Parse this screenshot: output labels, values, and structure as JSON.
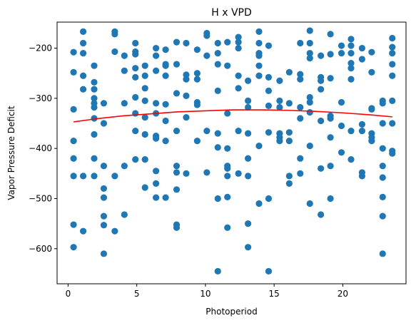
{
  "chart_data": {
    "type": "scatter",
    "title": "H x VPD",
    "xlabel": "Photoperiod",
    "ylabel": "Vapor Pressure Deficit",
    "xlim": [
      -0.8,
      24.6
    ],
    "ylim": [
      -670,
      -148
    ],
    "xticks": [
      0,
      5,
      10,
      15,
      20
    ],
    "yticks": [
      -600,
      -500,
      -400,
      -300,
      -200
    ],
    "ytick_labels": [
      "−600",
      "−500",
      "−400",
      "−300",
      "−200"
    ],
    "grid": false,
    "colors": {
      "points": "#1f77b4",
      "fit": "#ff0000"
    },
    "fit_curve": {
      "x": [
        0.4,
        2,
        4,
        6,
        8,
        10,
        12,
        14,
        16,
        18,
        20,
        22,
        23.6
      ],
      "y": [
        -347,
        -341,
        -335,
        -331,
        -327,
        -325,
        -323,
        -323,
        -324,
        -326,
        -329,
        -333,
        -337
      ]
    },
    "points": [
      [
        0.4,
        -208
      ],
      [
        0.4,
        -248
      ],
      [
        0.4,
        -322
      ],
      [
        0.4,
        -385
      ],
      [
        0.4,
        -420
      ],
      [
        0.4,
        -455
      ],
      [
        0.4,
        -552
      ],
      [
        0.4,
        -597
      ],
      [
        1.1,
        -167
      ],
      [
        1.1,
        -190
      ],
      [
        1.1,
        -210
      ],
      [
        1.1,
        -255
      ],
      [
        1.1,
        -282
      ],
      [
        1.1,
        -455
      ],
      [
        1.1,
        -565
      ],
      [
        1.9,
        -235
      ],
      [
        1.9,
        -268
      ],
      [
        1.9,
        -282
      ],
      [
        1.9,
        -300
      ],
      [
        1.9,
        -310
      ],
      [
        1.9,
        -318
      ],
      [
        1.9,
        -340
      ],
      [
        1.9,
        -372
      ],
      [
        1.9,
        -420
      ],
      [
        1.9,
        -455
      ],
      [
        2.6,
        -310
      ],
      [
        2.6,
        -350
      ],
      [
        2.6,
        -435
      ],
      [
        2.6,
        -480
      ],
      [
        2.6,
        -498
      ],
      [
        2.6,
        -535
      ],
      [
        2.6,
        -553
      ],
      [
        2.6,
        -610
      ],
      [
        3.4,
        -167
      ],
      [
        3.4,
        -172
      ],
      [
        3.4,
        -207
      ],
      [
        3.4,
        -455
      ],
      [
        3.4,
        -565
      ],
      [
        4.1,
        -215
      ],
      [
        4.1,
        -245
      ],
      [
        4.1,
        -310
      ],
      [
        4.1,
        -435
      ],
      [
        4.1,
        -532
      ],
      [
        4.9,
        -190
      ],
      [
        4.9,
        -207
      ],
      [
        4.9,
        -212
      ],
      [
        4.9,
        -240
      ],
      [
        4.9,
        -258
      ],
      [
        4.9,
        -298
      ],
      [
        4.9,
        -330
      ],
      [
        4.9,
        -365
      ],
      [
        4.9,
        -422
      ],
      [
        5.6,
        -235
      ],
      [
        5.6,
        -255
      ],
      [
        5.6,
        -280
      ],
      [
        5.6,
        -305
      ],
      [
        5.6,
        -338
      ],
      [
        5.6,
        -372
      ],
      [
        5.6,
        -422
      ],
      [
        5.6,
        -478
      ],
      [
        6.4,
        -200
      ],
      [
        6.4,
        -215
      ],
      [
        6.4,
        -245
      ],
      [
        6.4,
        -310
      ],
      [
        6.4,
        -330
      ],
      [
        6.4,
        -375
      ],
      [
        6.4,
        -380
      ],
      [
        6.4,
        -445
      ],
      [
        6.4,
        -470
      ],
      [
        6.4,
        -498
      ],
      [
        7.1,
        -203
      ],
      [
        7.1,
        -232
      ],
      [
        7.1,
        -235
      ],
      [
        7.1,
        -255
      ],
      [
        7.1,
        -312
      ],
      [
        7.1,
        -345
      ],
      [
        7.1,
        -385
      ],
      [
        7.1,
        -498
      ],
      [
        7.9,
        -188
      ],
      [
        7.9,
        -232
      ],
      [
        7.9,
        -290
      ],
      [
        7.9,
        -365
      ],
      [
        7.9,
        -435
      ],
      [
        7.9,
        -448
      ],
      [
        7.9,
        -482
      ],
      [
        7.9,
        -552
      ],
      [
        7.9,
        -558
      ],
      [
        8.6,
        -190
      ],
      [
        8.6,
        -253
      ],
      [
        8.6,
        -262
      ],
      [
        8.6,
        -295
      ],
      [
        8.6,
        -338
      ],
      [
        8.6,
        -450
      ],
      [
        9.4,
        -203
      ],
      [
        9.4,
        -250
      ],
      [
        9.4,
        -262
      ],
      [
        9.4,
        -308
      ],
      [
        9.4,
        -313
      ],
      [
        9.4,
        -385
      ],
      [
        10.1,
        -170
      ],
      [
        10.1,
        -175
      ],
      [
        10.1,
        -215
      ],
      [
        10.1,
        -365
      ],
      [
        10.1,
        -448
      ],
      [
        10.9,
        -190
      ],
      [
        10.9,
        -210
      ],
      [
        10.9,
        -232
      ],
      [
        10.9,
        -285
      ],
      [
        10.9,
        -370
      ],
      [
        10.9,
        -398
      ],
      [
        10.9,
        -500
      ],
      [
        10.9,
        -645
      ],
      [
        11.6,
        -188
      ],
      [
        11.6,
        -235
      ],
      [
        11.6,
        -330
      ],
      [
        11.6,
        -400
      ],
      [
        11.6,
        -435
      ],
      [
        11.6,
        -440
      ],
      [
        11.6,
        -455
      ],
      [
        11.6,
        -497
      ],
      [
        11.6,
        -558
      ],
      [
        12.4,
        -178
      ],
      [
        12.4,
        -188
      ],
      [
        12.4,
        -200
      ],
      [
        12.4,
        -255
      ],
      [
        12.4,
        -280
      ],
      [
        12.4,
        -365
      ],
      [
        12.4,
        -450
      ],
      [
        13.1,
        -265
      ],
      [
        13.1,
        -305
      ],
      [
        13.1,
        -318
      ],
      [
        13.1,
        -370
      ],
      [
        13.1,
        -420
      ],
      [
        13.1,
        -455
      ],
      [
        13.1,
        -550
      ],
      [
        13.1,
        -597
      ],
      [
        13.9,
        -167
      ],
      [
        13.9,
        -190
      ],
      [
        13.9,
        -210
      ],
      [
        13.9,
        -215
      ],
      [
        13.9,
        -235
      ],
      [
        13.9,
        -255
      ],
      [
        13.9,
        -395
      ],
      [
        13.9,
        -510
      ],
      [
        14.6,
        -195
      ],
      [
        14.6,
        -258
      ],
      [
        14.6,
        -285
      ],
      [
        14.6,
        -315
      ],
      [
        14.6,
        -368
      ],
      [
        14.6,
        -500
      ],
      [
        14.6,
        -645
      ],
      [
        15.4,
        -265
      ],
      [
        15.4,
        -305
      ],
      [
        15.4,
        -318
      ],
      [
        15.4,
        -370
      ],
      [
        15.4,
        -378
      ],
      [
        15.4,
        -385
      ],
      [
        16.1,
        -248
      ],
      [
        16.1,
        -310
      ],
      [
        16.1,
        -368
      ],
      [
        16.1,
        -385
      ],
      [
        16.1,
        -455
      ],
      [
        16.1,
        -470
      ],
      [
        16.9,
        -190
      ],
      [
        16.9,
        -252
      ],
      [
        16.9,
        -262
      ],
      [
        16.9,
        -318
      ],
      [
        16.9,
        -340
      ],
      [
        16.9,
        -420
      ],
      [
        16.9,
        -450
      ],
      [
        17.6,
        -165
      ],
      [
        17.6,
        -190
      ],
      [
        17.6,
        -210
      ],
      [
        17.6,
        -220
      ],
      [
        17.6,
        -298
      ],
      [
        17.6,
        -308
      ],
      [
        17.6,
        -328
      ],
      [
        17.6,
        -395
      ],
      [
        17.6,
        -510
      ],
      [
        18.4,
        -215
      ],
      [
        18.4,
        -258
      ],
      [
        18.4,
        -265
      ],
      [
        18.4,
        -282
      ],
      [
        18.4,
        -345
      ],
      [
        18.4,
        -440
      ],
      [
        18.4,
        -532
      ],
      [
        19.1,
        -172
      ],
      [
        19.1,
        -212
      ],
      [
        19.1,
        -260
      ],
      [
        19.1,
        -335
      ],
      [
        19.1,
        -340
      ],
      [
        19.1,
        -378
      ],
      [
        19.1,
        -435
      ],
      [
        19.1,
        -500
      ],
      [
        19.9,
        -195
      ],
      [
        19.9,
        -210
      ],
      [
        19.9,
        -308
      ],
      [
        19.9,
        -355
      ],
      [
        19.9,
        -408
      ],
      [
        20.6,
        -182
      ],
      [
        20.6,
        -195
      ],
      [
        20.6,
        -210
      ],
      [
        20.6,
        -230
      ],
      [
        20.6,
        -240
      ],
      [
        20.6,
        -262
      ],
      [
        20.6,
        -365
      ],
      [
        20.6,
        -422
      ],
      [
        21.4,
        -200
      ],
      [
        21.4,
        -222
      ],
      [
        21.4,
        -352
      ],
      [
        21.4,
        -365
      ],
      [
        21.4,
        -448
      ],
      [
        21.4,
        -455
      ],
      [
        22.1,
        -208
      ],
      [
        22.1,
        -248
      ],
      [
        22.1,
        -320
      ],
      [
        22.1,
        -322
      ],
      [
        22.1,
        -370
      ],
      [
        22.1,
        -378
      ],
      [
        22.1,
        -385
      ],
      [
        22.9,
        -305
      ],
      [
        22.9,
        -310
      ],
      [
        22.9,
        -350
      ],
      [
        22.9,
        -400
      ],
      [
        22.9,
        -435
      ],
      [
        22.9,
        -458
      ],
      [
        22.9,
        -497
      ],
      [
        22.9,
        -535
      ],
      [
        22.9,
        -610
      ],
      [
        23.6,
        -180
      ],
      [
        23.6,
        -198
      ],
      [
        23.6,
        -210
      ],
      [
        23.6,
        -232
      ],
      [
        23.6,
        -255
      ],
      [
        23.6,
        -305
      ],
      [
        23.6,
        -350
      ],
      [
        23.6,
        -405
      ],
      [
        23.6,
        -410
      ]
    ]
  }
}
